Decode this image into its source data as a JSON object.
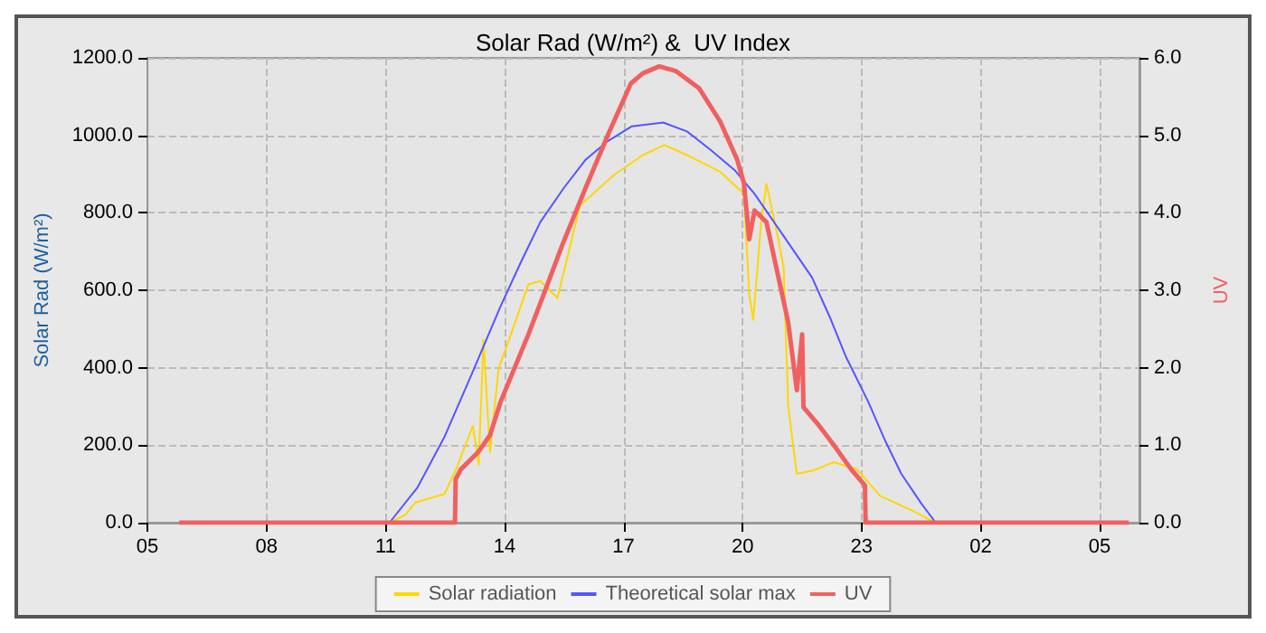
{
  "chart_data": {
    "type": "line",
    "title": "Solar Rad (W/m²) &  UV Index",
    "ylabel": "Solar Rad (W/m²)",
    "y2label": "UV",
    "xlim": [
      "--01-01T05:00",
      "--01-02T06:00"
    ],
    "xticks": [
      {
        "value": "--01-01T05:00",
        "label": "05"
      },
      {
        "value": "--01-01T08:00",
        "label": "08"
      },
      {
        "value": "--01-01T11:00",
        "label": "11"
      },
      {
        "value": "--01-01T14:00",
        "label": "14"
      },
      {
        "value": "--01-01T17:00",
        "label": "17"
      },
      {
        "value": "--01-01T20:00",
        "label": "20"
      },
      {
        "value": "--01-01T23:00",
        "label": "23"
      },
      {
        "value": "--01-02T02:00",
        "label": "02"
      },
      {
        "value": "--01-02T05:00",
        "label": "05"
      }
    ],
    "ylim": [
      0,
      1200
    ],
    "yticks": [
      {
        "value": 0,
        "label": "0.0"
      },
      {
        "value": 200,
        "label": "200.0"
      },
      {
        "value": 400,
        "label": "400.0"
      },
      {
        "value": 600,
        "label": "600.0"
      },
      {
        "value": 800,
        "label": "800.0"
      },
      {
        "value": 1000,
        "label": "1000.0"
      },
      {
        "value": 1200,
        "label": "1200.0"
      }
    ],
    "y2lim": [
      0,
      6
    ],
    "y2ticks": [
      {
        "value": 0,
        "label": "0.0"
      },
      {
        "value": 1,
        "label": "1.0"
      },
      {
        "value": 2,
        "label": "2.0"
      },
      {
        "value": 3,
        "label": "3.0"
      },
      {
        "value": 4,
        "label": "4.0"
      },
      {
        "value": 5,
        "label": "5.0"
      },
      {
        "value": 6,
        "label": "6.0"
      }
    ],
    "grid": true,
    "legend": "bottom",
    "marker": "none",
    "line_style": "solid",
    "series": [
      {
        "name": "Solar radiation",
        "color": "#ffd700",
        "x": [
          "--01-01T05:48",
          "--01-01T11:06",
          "--01-01T11:30",
          "--01-01T11:45",
          "--01-01T12:29",
          "--01-01T12:47",
          "--01-01T13:12",
          "--01-01T13:21",
          "--01-01T13:28",
          "--01-01T13:38",
          "--01-01T13:51",
          "--01-01T14:04",
          "--01-01T14:36",
          "--01-01T14:54",
          "--01-01T15:20",
          "--01-01T15:54",
          "--01-01T16:45",
          "--01-01T17:29",
          "--01-01T18:02",
          "--01-01T18:36",
          "--01-01T19:26",
          "--01-01T20:02",
          "--01-01T20:10",
          "--01-01T20:16",
          "--01-01T20:28",
          "--01-01T20:36",
          "--01-01T20:54",
          "--01-01T21:02",
          "--01-01T21:09",
          "--01-01T21:22",
          "--01-01T21:45",
          "--01-01T22:18",
          "--01-01T22:52",
          "--01-01T23:28",
          "--01-02T00:18",
          "--01-02T00:52",
          "--01-02T05:44"
        ],
        "values": [
          0,
          0,
          20,
          52,
          74,
          139,
          250,
          150,
          472,
          182,
          399,
          459,
          615,
          624,
          580,
          819,
          897,
          949,
          975,
          949,
          906,
          849,
          589,
          524,
          776,
          875,
          732,
          659,
          299,
          126,
          134,
          156,
          139,
          69,
          30,
          0,
          0
        ]
      },
      {
        "name": "Theoretical solar max",
        "color": "#5555ff",
        "x": [
          "--01-01T11:06",
          "--01-01T11:48",
          "--01-01T12:29",
          "--01-01T13:12",
          "--01-01T13:54",
          "--01-01T14:24",
          "--01-01T14:54",
          "--01-01T15:30",
          "--01-01T16:02",
          "--01-01T16:36",
          "--01-01T17:12",
          "--01-01T18:00",
          "--01-01T18:36",
          "--01-01T19:12",
          "--01-01T19:48",
          "--01-01T20:18",
          "--01-01T21:00",
          "--01-01T21:45",
          "--01-01T22:12",
          "--01-01T22:36",
          "--01-01T23:10",
          "--01-01T23:36",
          "--01-02T00:00",
          "--01-02T00:30",
          "--01-02T00:52"
        ],
        "values": [
          0,
          90,
          221,
          390,
          559,
          670,
          776,
          865,
          936,
          985,
          1023,
          1033,
          1010,
          962,
          910,
          849,
          745,
          633,
          530,
          429,
          312,
          210,
          126,
          50,
          0
        ]
      },
      {
        "name": "UV",
        "color": "#f06060",
        "axis": "y2",
        "x": [
          "--01-01T05:48",
          "--01-01T12:45",
          "--01-01T12:46",
          "--01-01T12:54",
          "--01-01T13:20",
          "--01-01T13:38",
          "--01-01T13:54",
          "--01-01T14:36",
          "--01-01T15:02",
          "--01-01T15:28",
          "--01-01T16:02",
          "--01-01T16:37",
          "--01-01T17:11",
          "--01-01T17:29",
          "--01-01T17:54",
          "--01-01T18:19",
          "--01-01T18:54",
          "--01-01T19:26",
          "--01-01T19:52",
          "--01-01T20:02",
          "--01-01T20:10",
          "--01-01T20:18",
          "--01-01T20:36",
          "--01-01T21:02",
          "--01-01T21:09",
          "--01-01T21:22",
          "--01-01T21:30",
          "--01-01T21:32",
          "--01-01T21:53",
          "--01-01T22:18",
          "--01-01T22:44",
          "--01-01T23:05",
          "--01-01T23:06",
          "--01-02T05:44"
        ],
        "values": [
          0,
          0,
          0.56,
          0.69,
          0.91,
          1.13,
          1.56,
          2.43,
          3.01,
          3.6,
          4.31,
          5.02,
          5.67,
          5.8,
          5.89,
          5.83,
          5.61,
          5.18,
          4.68,
          4.38,
          3.66,
          4.03,
          3.88,
          2.86,
          2.58,
          1.71,
          2.43,
          1.49,
          1.28,
          1.0,
          0.69,
          0.48,
          0,
          0
        ]
      }
    ]
  }
}
